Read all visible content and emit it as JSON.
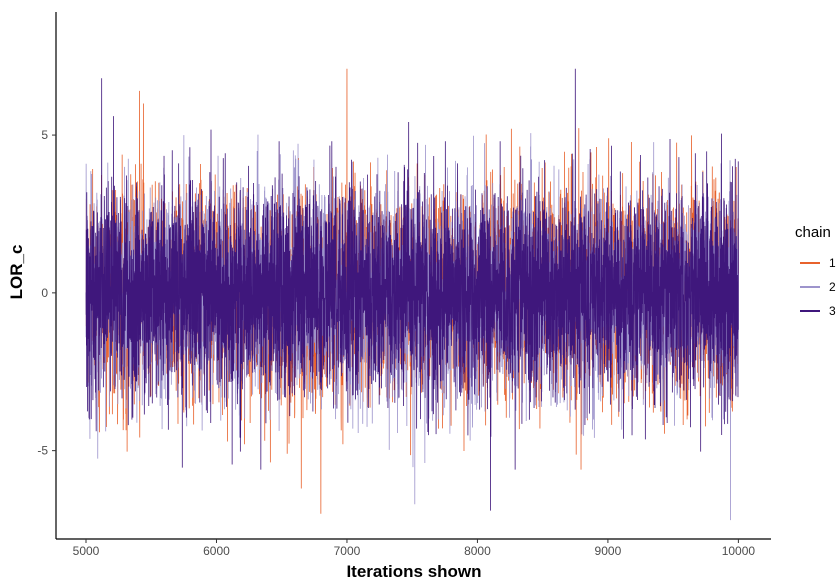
{
  "chart_data": {
    "type": "line",
    "xlabel": "Iterations shown",
    "ylabel": "LOR_c",
    "xlim": [
      4770,
      10250
    ],
    "ylim": [
      -7.8,
      8.9
    ],
    "x_ticks": [
      5000,
      6000,
      7000,
      8000,
      9000,
      10000
    ],
    "x_tick_labels": [
      "5000",
      "6000",
      "7000",
      "8000",
      "9000",
      "10000"
    ],
    "y_ticks": [
      5,
      0,
      -5
    ],
    "y_tick_labels": [
      "5",
      "0",
      "-5"
    ],
    "grid": false,
    "legend": {
      "title": "chain",
      "position": "right"
    },
    "iterations": {
      "start": 5000,
      "end": 10000
    },
    "series": [
      {
        "name": "1",
        "color": "#e8622c",
        "mean": 0.0,
        "sd": 1.6,
        "notable_points": [
          [
            5410,
            6.4
          ],
          [
            5440,
            6.0
          ],
          [
            7000,
            7.1
          ],
          [
            6800,
            -7.0
          ],
          [
            6650,
            -6.2
          ],
          [
            8260,
            5.2
          ]
        ]
      },
      {
        "name": "2",
        "color": "#9d94cc",
        "mean": 0.0,
        "sd": 1.6,
        "notable_points": [
          [
            7520,
            8.3
          ],
          [
            7520,
            -6.7
          ],
          [
            9940,
            -7.2
          ],
          [
            5750,
            5.0
          ]
        ]
      },
      {
        "name": "3",
        "color": "#3f177c",
        "mean": 0.0,
        "sd": 1.6,
        "notable_points": [
          [
            5120,
            6.8
          ],
          [
            8750,
            7.1
          ],
          [
            8100,
            -6.9
          ],
          [
            5040,
            -4.0
          ]
        ]
      }
    ]
  }
}
